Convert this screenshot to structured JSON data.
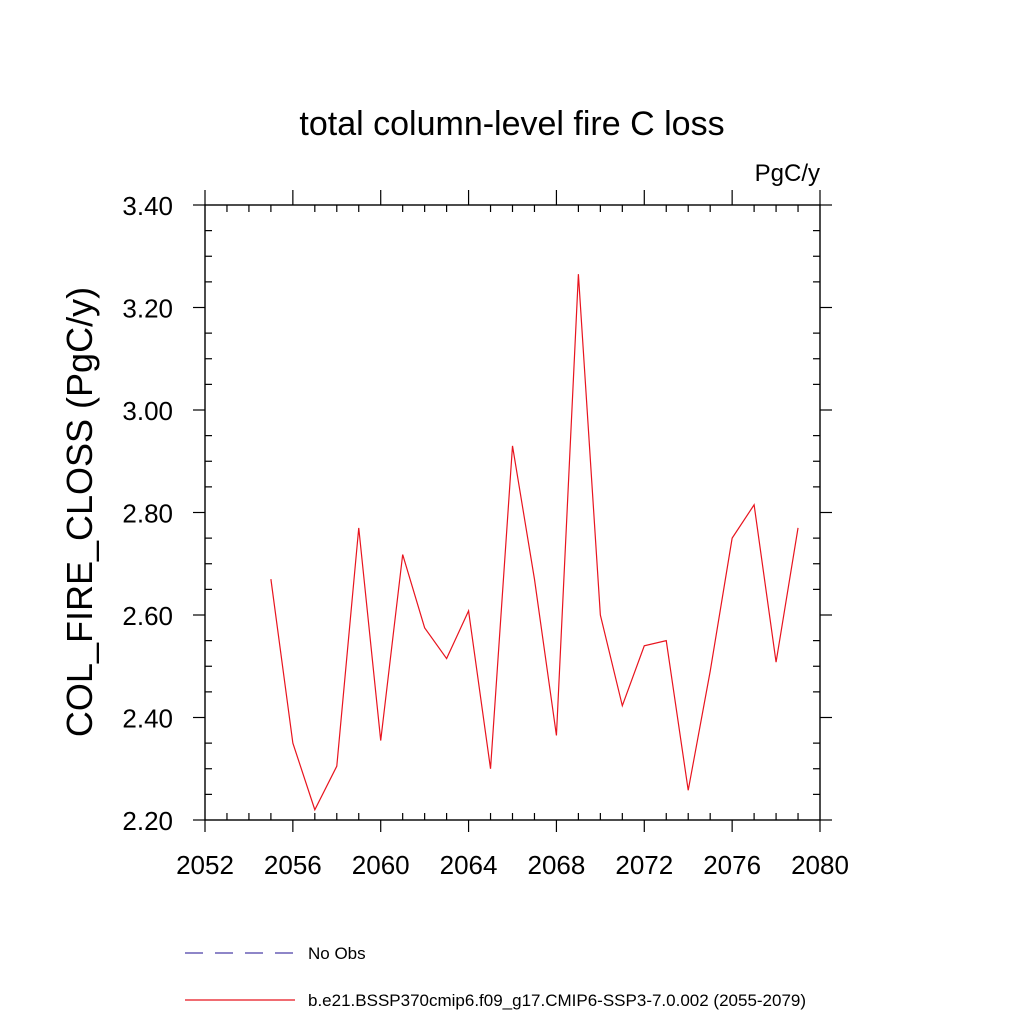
{
  "chart_data": {
    "type": "line",
    "title": "total column-level fire C loss",
    "units_label": "PgC/y",
    "ylabel": "COL_FIRE_CLOSS  (PgC/y)",
    "xlabel": "",
    "xlim": [
      2052,
      2080
    ],
    "ylim": [
      2.2,
      3.4
    ],
    "x_ticks": [
      2052,
      2056,
      2060,
      2064,
      2068,
      2072,
      2076,
      2080
    ],
    "x_tick_labels": [
      "2052",
      "2056",
      "2060",
      "2064",
      "2068",
      "2072",
      "2076",
      "2080"
    ],
    "y_ticks": [
      2.2,
      2.4,
      2.6,
      2.8,
      3.0,
      3.2,
      3.4
    ],
    "y_tick_labels": [
      "2.20",
      "2.40",
      "2.60",
      "2.80",
      "3.00",
      "3.20",
      "3.40"
    ],
    "grid": false,
    "legend_position": "bottom",
    "series": [
      {
        "name": "No Obs",
        "color": "#4b3fa8",
        "dash": "dashed",
        "x": [],
        "values": []
      },
      {
        "name": "b.e21.BSSP370cmip6.f09_g17.CMIP6-SSP3-7.0.002 (2055-2079)",
        "color": "#e8141e",
        "dash": "solid",
        "x": [
          2055,
          2056,
          2057,
          2058,
          2059,
          2060,
          2061,
          2062,
          2063,
          2064,
          2065,
          2066,
          2067,
          2068,
          2069,
          2070,
          2071,
          2072,
          2073,
          2074,
          2075,
          2076,
          2077,
          2078,
          2079
        ],
        "values": [
          2.67,
          2.35,
          2.22,
          2.305,
          2.77,
          2.355,
          2.718,
          2.575,
          2.515,
          2.608,
          2.3,
          2.93,
          2.67,
          2.365,
          3.265,
          2.6,
          2.423,
          2.54,
          2.55,
          2.258,
          2.49,
          2.75,
          2.815,
          2.508,
          2.77
        ]
      }
    ]
  }
}
